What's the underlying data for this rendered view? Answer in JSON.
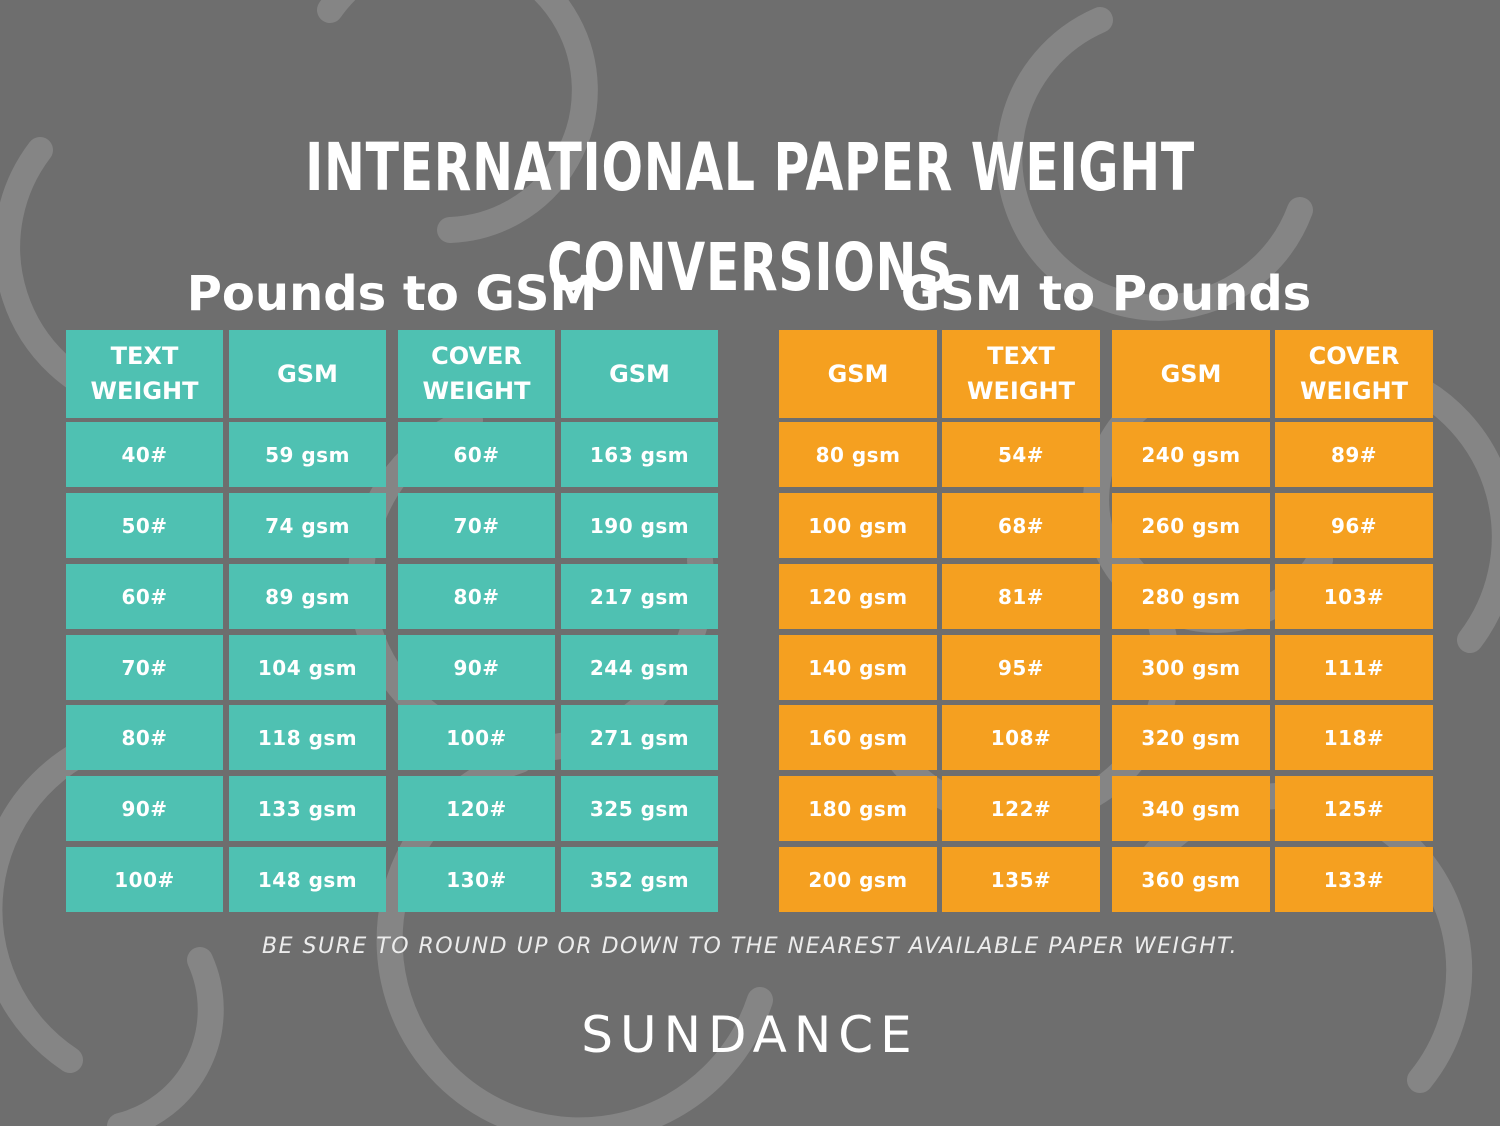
{
  "title": "INTERNATIONAL PAPER WEIGHT CONVERSIONS",
  "colors": {
    "background": "#6e6e6e",
    "teal": "#4fc1b2",
    "orange": "#f5a020",
    "text": "#ffffff"
  },
  "pounds_to_gsm": {
    "heading": "Pounds to GSM",
    "headers": [
      "TEXT\nWEIGHT",
      "GSM",
      "COVER\nWEIGHT",
      "GSM"
    ],
    "rows": [
      [
        "40#",
        "59 gsm",
        "60#",
        "163 gsm"
      ],
      [
        "50#",
        "74 gsm",
        "70#",
        "190 gsm"
      ],
      [
        "60#",
        "89 gsm",
        "80#",
        "217 gsm"
      ],
      [
        "70#",
        "104 gsm",
        "90#",
        "244 gsm"
      ],
      [
        "80#",
        "118 gsm",
        "100#",
        "271 gsm"
      ],
      [
        "90#",
        "133 gsm",
        "120#",
        "325 gsm"
      ],
      [
        "100#",
        "148 gsm",
        "130#",
        "352 gsm"
      ]
    ]
  },
  "gsm_to_pounds": {
    "heading": "GSM to Pounds",
    "headers": [
      "GSM",
      "TEXT\nWEIGHT",
      "GSM",
      "COVER\nWEIGHT"
    ],
    "rows": [
      [
        "80 gsm",
        "54#",
        "240 gsm",
        "89#"
      ],
      [
        "100 gsm",
        "68#",
        "260 gsm",
        "96#"
      ],
      [
        "120 gsm",
        "81#",
        "280 gsm",
        "103#"
      ],
      [
        "140 gsm",
        "95#",
        "300 gsm",
        "111#"
      ],
      [
        "160 gsm",
        "108#",
        "320 gsm",
        "118#"
      ],
      [
        "180 gsm",
        "122#",
        "340 gsm",
        "125#"
      ],
      [
        "200 gsm",
        "135#",
        "360 gsm",
        "133#"
      ]
    ]
  },
  "note": "BE SURE TO ROUND UP OR DOWN TO THE NEAREST AVAILABLE PAPER WEIGHT.",
  "brand": "SUNDANCE"
}
